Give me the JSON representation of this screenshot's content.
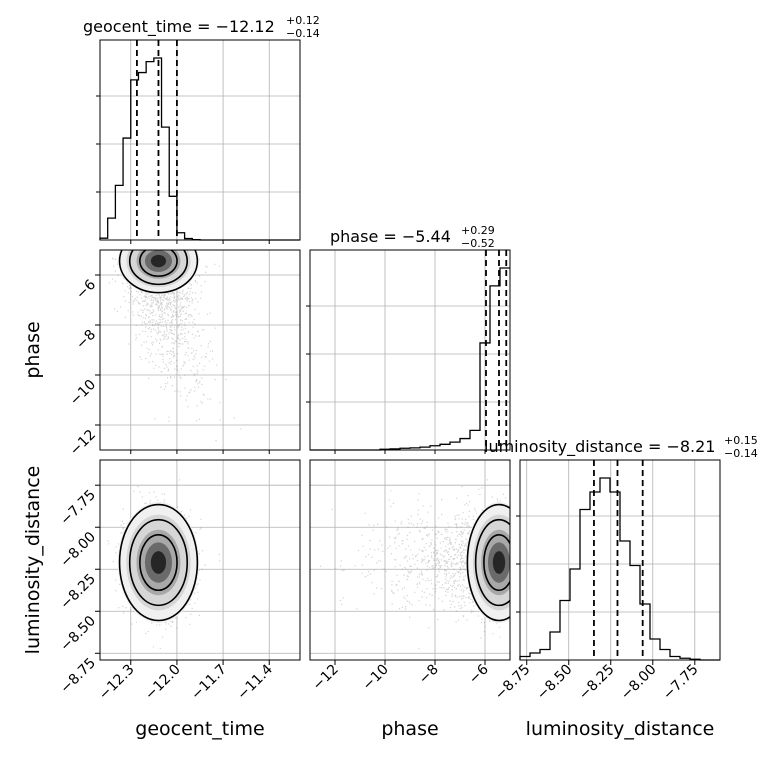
{
  "chart_data": {
    "type": "scatter",
    "kind": "corner plot",
    "parameters": [
      "geocent_time",
      "phase",
      "luminosity_distance"
    ],
    "titles": {
      "geocent_time": {
        "label": "geocent_time = ",
        "value": "−12.12",
        "plus": "+0.12",
        "minus": "−0.14"
      },
      "phase": {
        "label": "phase = ",
        "value": "−5.44",
        "plus": "+0.29",
        "minus": "−0.52"
      },
      "luminosity_distance": {
        "label": "luminosity_distance = ",
        "value": "−8.21",
        "plus": "+0.15",
        "minus": "−0.14"
      }
    },
    "axis_labels": {
      "x": [
        "geocent_time",
        "phase",
        "luminosity_distance"
      ],
      "y": [
        "phase",
        "luminosity_distance"
      ]
    },
    "ranges": {
      "geocent_time": [
        -12.5,
        -11.2
      ],
      "phase": [
        -13.0,
        -5.0
      ],
      "luminosity_distance": [
        -8.79,
        -7.6
      ]
    },
    "ticks": {
      "geocent_time": {
        "values": [
          -12.3,
          -12.0,
          -11.7,
          -11.4
        ],
        "labels": [
          "−12.3",
          "−12.0",
          "−11.7",
          "−11.4"
        ]
      },
      "phase": {
        "values": [
          -12,
          -10,
          -8,
          -6
        ],
        "labels": [
          "−12",
          "−10",
          "−8",
          "−6"
        ]
      },
      "luminosity_distance": {
        "values": [
          -8.75,
          -8.5,
          -8.25,
          -8.0,
          -7.75
        ],
        "labels": [
          "−8.75",
          "−8.50",
          "−8.25",
          "−8.00",
          "−7.75"
        ]
      }
    },
    "quantiles": {
      "geocent_time": [
        -12.26,
        -12.12,
        -12.0
      ],
      "phase": [
        -5.96,
        -5.44,
        -5.15
      ],
      "luminosity_distance": [
        -8.35,
        -8.21,
        -8.06
      ]
    },
    "histograms": {
      "geocent_time": {
        "edges_start": -12.5,
        "bin_width": 0.05,
        "counts": [
          0.5,
          6,
          15,
          28,
          44,
          46,
          49,
          50,
          31,
          12,
          2,
          0.4,
          0.1,
          0,
          0,
          0,
          0,
          0,
          0,
          0,
          0,
          0,
          0,
          0,
          0,
          0
        ]
      },
      "phase": {
        "edges_start": -13.0,
        "bin_width": 0.4,
        "counts": [
          0,
          0,
          0,
          0,
          0,
          0,
          0,
          0.2,
          0.3,
          0.5,
          0.6,
          0.8,
          1.2,
          1.6,
          2.2,
          3.2,
          5.5,
          30,
          46,
          51
        ]
      },
      "luminosity_distance": {
        "edges_start": -8.79,
        "bin_width": 0.0595,
        "counts": [
          1,
          2,
          3,
          8,
          17,
          26,
          43,
          48,
          52,
          48,
          34,
          27,
          16,
          6,
          3,
          1,
          0.5,
          0.2,
          0,
          0
        ]
      }
    },
    "posterior_center": {
      "geocent_time": -12.12,
      "phase": -5.44,
      "luminosity_distance": -8.21
    },
    "grid": true,
    "colors": {
      "ink": "#000000",
      "grid": "#b0b0b0",
      "sample": "#808080"
    }
  }
}
